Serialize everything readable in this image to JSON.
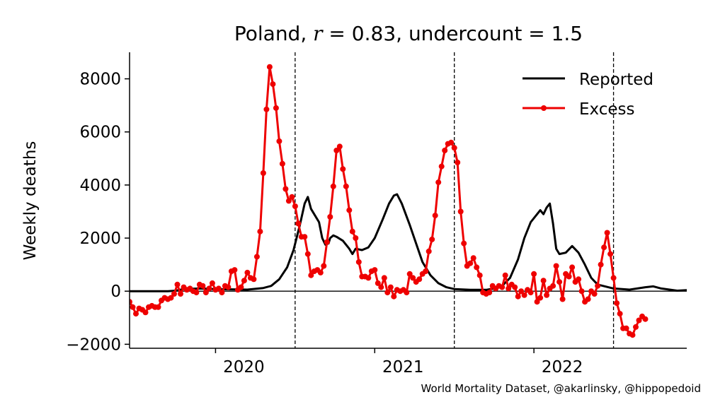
{
  "chart_data": {
    "type": "line",
    "title": {
      "prefix": "Poland, ",
      "r_symbol": "r",
      "r_value": " = 0.83, undercount = 1.5"
    },
    "ylabel": "Weekly deaths",
    "xlim": [
      2019.46,
      2022.96
    ],
    "ylim": [
      -2150,
      9000
    ],
    "x_ticks": [
      {
        "value": 2020.0,
        "label": "2020"
      },
      {
        "value": 2021.0,
        "label": "2021"
      },
      {
        "value": 2022.0,
        "label": "2022"
      }
    ],
    "y_ticks": [
      {
        "value": -2000,
        "label": "−2000"
      },
      {
        "value": 0,
        "label": "0"
      },
      {
        "value": 2000,
        "label": "2000"
      },
      {
        "value": 4000,
        "label": "4000"
      },
      {
        "value": 6000,
        "label": "6000"
      },
      {
        "value": 8000,
        "label": "8000"
      }
    ],
    "vlines": [
      2020.5,
      2021.5,
      2022.5
    ],
    "hline": 0,
    "legend": {
      "position": "top-right",
      "entries": [
        {
          "label": "Reported",
          "color": "#000000",
          "marker": false
        },
        {
          "label": "Excess",
          "color": "#ee0000",
          "marker": true
        }
      ]
    },
    "footer": "World Mortality Dataset, @akarlinsky, @hippopedoid",
    "series": [
      {
        "name": "Reported",
        "color": "#000000",
        "points": [
          [
            2019.46,
            0
          ],
          [
            2019.7,
            0
          ],
          [
            2019.75,
            20
          ],
          [
            2019.8,
            80
          ],
          [
            2019.9,
            100
          ],
          [
            2020.0,
            80
          ],
          [
            2020.1,
            70
          ],
          [
            2020.2,
            60
          ],
          [
            2020.3,
            120
          ],
          [
            2020.35,
            200
          ],
          [
            2020.4,
            450
          ],
          [
            2020.45,
            900
          ],
          [
            2020.49,
            1550
          ],
          [
            2020.53,
            2500
          ],
          [
            2020.56,
            3300
          ],
          [
            2020.58,
            3550
          ],
          [
            2020.6,
            3100
          ],
          [
            2020.65,
            2600
          ],
          [
            2020.67,
            2000
          ],
          [
            2020.69,
            1750
          ],
          [
            2020.71,
            1800
          ],
          [
            2020.72,
            2000
          ],
          [
            2020.74,
            2100
          ],
          [
            2020.76,
            2050
          ],
          [
            2020.8,
            1900
          ],
          [
            2020.84,
            1600
          ],
          [
            2020.86,
            1400
          ],
          [
            2020.88,
            1600
          ],
          [
            2020.92,
            1550
          ],
          [
            2020.96,
            1650
          ],
          [
            2021.0,
            2000
          ],
          [
            2021.05,
            2700
          ],
          [
            2021.09,
            3300
          ],
          [
            2021.12,
            3600
          ],
          [
            2021.14,
            3650
          ],
          [
            2021.17,
            3300
          ],
          [
            2021.22,
            2500
          ],
          [
            2021.26,
            1800
          ],
          [
            2021.3,
            1100
          ],
          [
            2021.35,
            600
          ],
          [
            2021.4,
            300
          ],
          [
            2021.45,
            150
          ],
          [
            2021.5,
            80
          ],
          [
            2021.6,
            50
          ],
          [
            2021.7,
            50
          ],
          [
            2021.75,
            100
          ],
          [
            2021.8,
            200
          ],
          [
            2021.85,
            500
          ],
          [
            2021.9,
            1200
          ],
          [
            2021.94,
            2000
          ],
          [
            2021.98,
            2600
          ],
          [
            2022.02,
            2900
          ],
          [
            2022.04,
            3050
          ],
          [
            2022.06,
            2900
          ],
          [
            2022.08,
            3150
          ],
          [
            2022.1,
            3300
          ],
          [
            2022.12,
            2550
          ],
          [
            2022.14,
            1600
          ],
          [
            2022.16,
            1400
          ],
          [
            2022.2,
            1450
          ],
          [
            2022.24,
            1700
          ],
          [
            2022.28,
            1450
          ],
          [
            2022.32,
            1000
          ],
          [
            2022.36,
            500
          ],
          [
            2022.4,
            250
          ],
          [
            2022.5,
            100
          ],
          [
            2022.6,
            60
          ],
          [
            2022.7,
            150
          ],
          [
            2022.75,
            180
          ],
          [
            2022.8,
            100
          ],
          [
            2022.9,
            20
          ],
          [
            2023.0,
            50
          ],
          [
            2023.1,
            40
          ],
          [
            2023.2,
            60
          ],
          [
            2023.3,
            80
          ],
          [
            2023.4,
            120
          ],
          [
            2023.48,
            140
          ]
        ]
      },
      {
        "name": "Excess",
        "color": "#ee0000",
        "points": [
          [
            2019.46,
            -400
          ],
          [
            2019.48,
            -600
          ],
          [
            2019.5,
            -850
          ],
          [
            2019.52,
            -650
          ],
          [
            2019.54,
            -700
          ],
          [
            2019.56,
            -800
          ],
          [
            2019.58,
            -600
          ],
          [
            2019.6,
            -550
          ],
          [
            2019.62,
            -600
          ],
          [
            2019.64,
            -600
          ],
          [
            2019.66,
            -350
          ],
          [
            2019.68,
            -250
          ],
          [
            2019.7,
            -300
          ],
          [
            2019.72,
            -250
          ],
          [
            2019.74,
            -100
          ],
          [
            2019.76,
            250
          ],
          [
            2019.78,
            -100
          ],
          [
            2019.8,
            150
          ],
          [
            2019.82,
            50
          ],
          [
            2019.84,
            100
          ],
          [
            2019.86,
            0
          ],
          [
            2019.88,
            -50
          ],
          [
            2019.9,
            250
          ],
          [
            2019.92,
            200
          ],
          [
            2019.94,
            -50
          ],
          [
            2019.96,
            100
          ],
          [
            2019.98,
            300
          ],
          [
            2020.0,
            50
          ],
          [
            2020.02,
            100
          ],
          [
            2020.04,
            -50
          ],
          [
            2020.06,
            200
          ],
          [
            2020.08,
            150
          ],
          [
            2020.1,
            750
          ],
          [
            2020.12,
            800
          ],
          [
            2020.14,
            50
          ],
          [
            2020.16,
            150
          ],
          [
            2020.18,
            400
          ],
          [
            2020.2,
            700
          ],
          [
            2020.22,
            500
          ],
          [
            2020.24,
            450
          ],
          [
            2020.26,
            1300
          ],
          [
            2020.28,
            2250
          ],
          [
            2020.3,
            4450
          ],
          [
            2020.32,
            6850
          ],
          [
            2020.34,
            8450
          ],
          [
            2020.36,
            7800
          ],
          [
            2020.38,
            6900
          ],
          [
            2020.4,
            5650
          ],
          [
            2020.42,
            4800
          ],
          [
            2020.44,
            3850
          ],
          [
            2020.46,
            3400
          ],
          [
            2020.48,
            3550
          ],
          [
            2020.5,
            3200
          ],
          [
            2020.52,
            2550
          ],
          [
            2020.54,
            2050
          ],
          [
            2020.56,
            2050
          ],
          [
            2020.58,
            1400
          ],
          [
            2020.6,
            600
          ],
          [
            2020.62,
            750
          ],
          [
            2020.64,
            800
          ],
          [
            2020.66,
            700
          ],
          [
            2020.68,
            950
          ],
          [
            2020.7,
            1850
          ],
          [
            2020.72,
            2800
          ],
          [
            2020.74,
            3950
          ],
          [
            2020.76,
            5300
          ],
          [
            2020.78,
            5450
          ],
          [
            2020.8,
            4600
          ],
          [
            2020.82,
            3950
          ],
          [
            2020.84,
            3050
          ],
          [
            2020.86,
            2250
          ],
          [
            2020.88,
            2000
          ],
          [
            2020.9,
            1100
          ],
          [
            2020.92,
            550
          ],
          [
            2020.94,
            550
          ],
          [
            2020.96,
            500
          ],
          [
            2020.98,
            750
          ],
          [
            2021.0,
            800
          ],
          [
            2021.02,
            300
          ],
          [
            2021.04,
            150
          ],
          [
            2021.06,
            500
          ],
          [
            2021.08,
            -50
          ],
          [
            2021.1,
            150
          ],
          [
            2021.12,
            -200
          ],
          [
            2021.14,
            50
          ],
          [
            2021.16,
            0
          ],
          [
            2021.18,
            50
          ],
          [
            2021.2,
            -50
          ],
          [
            2021.22,
            650
          ],
          [
            2021.24,
            500
          ],
          [
            2021.26,
            350
          ],
          [
            2021.28,
            450
          ],
          [
            2021.3,
            650
          ],
          [
            2021.32,
            750
          ],
          [
            2021.34,
            1500
          ],
          [
            2021.36,
            1950
          ],
          [
            2021.38,
            2850
          ],
          [
            2021.4,
            4100
          ],
          [
            2021.42,
            4700
          ],
          [
            2021.44,
            5300
          ],
          [
            2021.46,
            5550
          ],
          [
            2021.48,
            5600
          ],
          [
            2021.5,
            5400
          ],
          [
            2021.52,
            4850
          ],
          [
            2021.54,
            3000
          ],
          [
            2021.56,
            1800
          ],
          [
            2021.58,
            950
          ],
          [
            2021.6,
            1050
          ],
          [
            2021.62,
            1250
          ],
          [
            2021.64,
            900
          ],
          [
            2021.66,
            600
          ],
          [
            2021.68,
            -50
          ],
          [
            2021.7,
            -100
          ],
          [
            2021.72,
            -50
          ],
          [
            2021.74,
            200
          ],
          [
            2021.76,
            100
          ],
          [
            2021.78,
            200
          ],
          [
            2021.8,
            150
          ],
          [
            2021.82,
            600
          ],
          [
            2021.84,
            100
          ],
          [
            2021.86,
            250
          ],
          [
            2021.88,
            150
          ],
          [
            2021.9,
            -200
          ],
          [
            2021.92,
            0
          ],
          [
            2021.94,
            -150
          ],
          [
            2021.96,
            50
          ],
          [
            2021.98,
            -50
          ],
          [
            2022.0,
            650
          ],
          [
            2022.02,
            -400
          ],
          [
            2022.04,
            -250
          ],
          [
            2022.06,
            400
          ],
          [
            2022.08,
            -150
          ],
          [
            2022.1,
            100
          ],
          [
            2022.12,
            200
          ],
          [
            2022.14,
            950
          ],
          [
            2022.16,
            350
          ],
          [
            2022.18,
            -300
          ],
          [
            2022.2,
            650
          ],
          [
            2022.22,
            550
          ],
          [
            2022.24,
            900
          ],
          [
            2022.26,
            350
          ],
          [
            2022.28,
            450
          ],
          [
            2022.3,
            0
          ],
          [
            2022.32,
            -400
          ],
          [
            2022.34,
            -300
          ],
          [
            2022.36,
            0
          ],
          [
            2022.38,
            -100
          ],
          [
            2022.4,
            200
          ],
          [
            2022.42,
            1000
          ],
          [
            2022.44,
            1650
          ],
          [
            2022.46,
            2200
          ],
          [
            2022.48,
            1400
          ],
          [
            2022.5,
            500
          ],
          [
            2022.52,
            -450
          ],
          [
            2022.54,
            -850
          ],
          [
            2022.56,
            -1400
          ],
          [
            2022.58,
            -1400
          ],
          [
            2022.6,
            -1600
          ],
          [
            2022.62,
            -1650
          ],
          [
            2022.64,
            -1350
          ],
          [
            2022.66,
            -1100
          ],
          [
            2022.68,
            -950
          ],
          [
            2022.7,
            -1050
          ]
        ]
      }
    ]
  }
}
